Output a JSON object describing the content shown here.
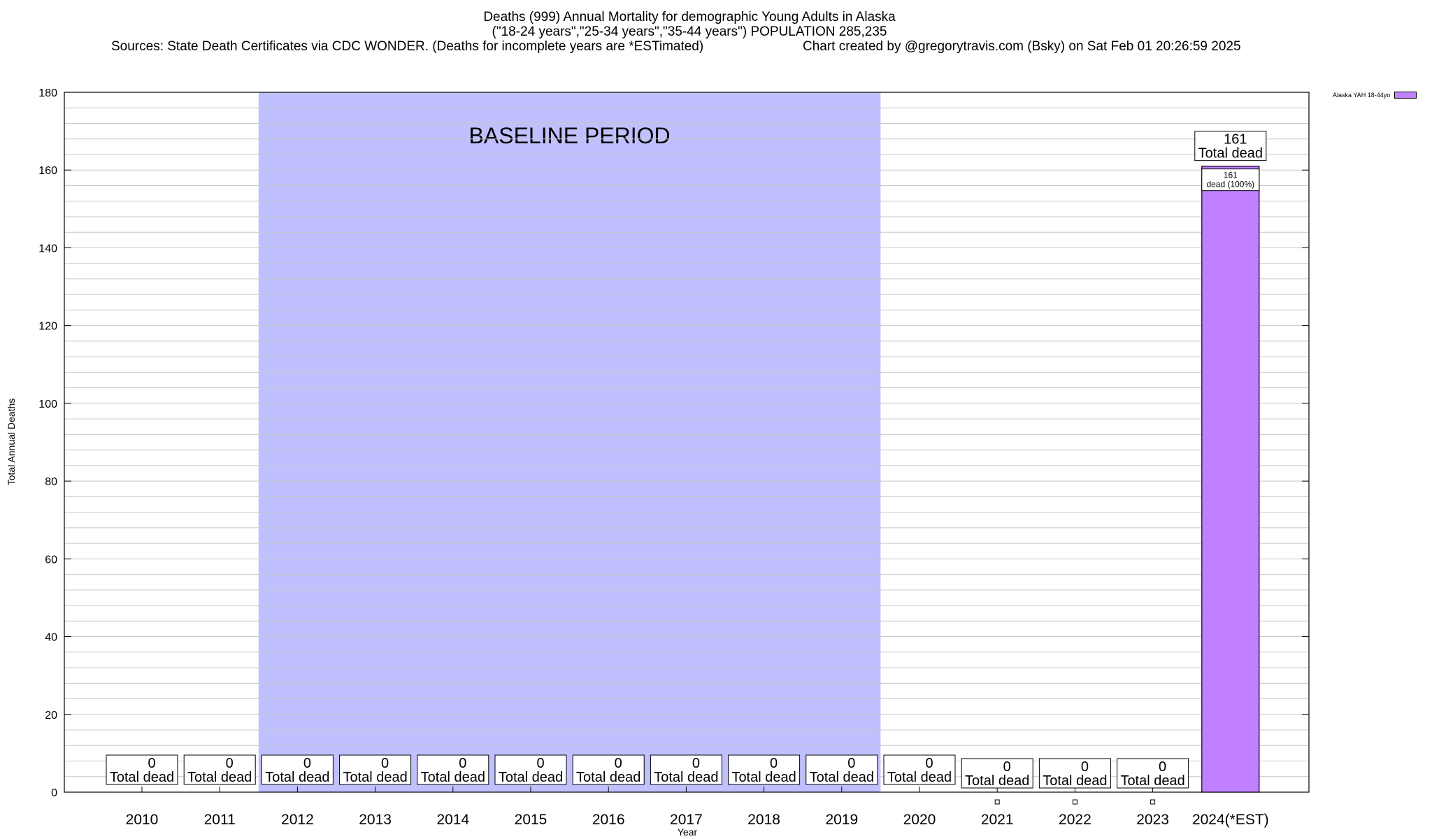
{
  "title": {
    "line1": "Deaths (999) Annual Mortality for demographic Young Adults in Alaska",
    "line2": "(\"18-24 years\",\"25-34 years\",\"35-44 years\") POPULATION 285,235",
    "line3_sources": "Sources: State Death Certificates via CDC WONDER. (Deaths for incomplete years are *ESTimated)",
    "line3_credit": "Chart created by @gregorytravis.com (Bsky) on Sat Feb 01 20:26:59 2025"
  },
  "legend": {
    "label": "Alaska YAH 18-44yo",
    "color": "#c080ff"
  },
  "chart_data": {
    "type": "bar",
    "title": "Deaths (999) Annual Mortality for demographic Young Adults in Alaska",
    "xlabel": "Year",
    "ylabel": "Total Annual Deaths",
    "ylim": [
      0,
      180
    ],
    "yticks": [
      0,
      20,
      40,
      60,
      80,
      100,
      120,
      140,
      160,
      180
    ],
    "grid": true,
    "legend_position": "top-right",
    "categories": [
      "2010",
      "2011",
      "2012",
      "2013",
      "2014",
      "2015",
      "2016",
      "2017",
      "2018",
      "2019",
      "2020",
      "2021",
      "2022",
      "2023",
      "2024(*EST)"
    ],
    "series": [
      {
        "name": "Alaska YAH 18-44yo",
        "color": "#c080ff",
        "values": [
          0,
          0,
          0,
          0,
          0,
          0,
          0,
          0,
          0,
          0,
          0,
          0,
          0,
          0,
          161
        ]
      }
    ],
    "total_label_suffix": "Total dead",
    "inner_label": {
      "category": "2024(*EST)",
      "line1": "161",
      "line2": "dead (100%)"
    },
    "baseline_period": {
      "label": "BASELINE PERIOD",
      "from": "2012",
      "to": "2019",
      "color": "#c0c0ff"
    }
  }
}
